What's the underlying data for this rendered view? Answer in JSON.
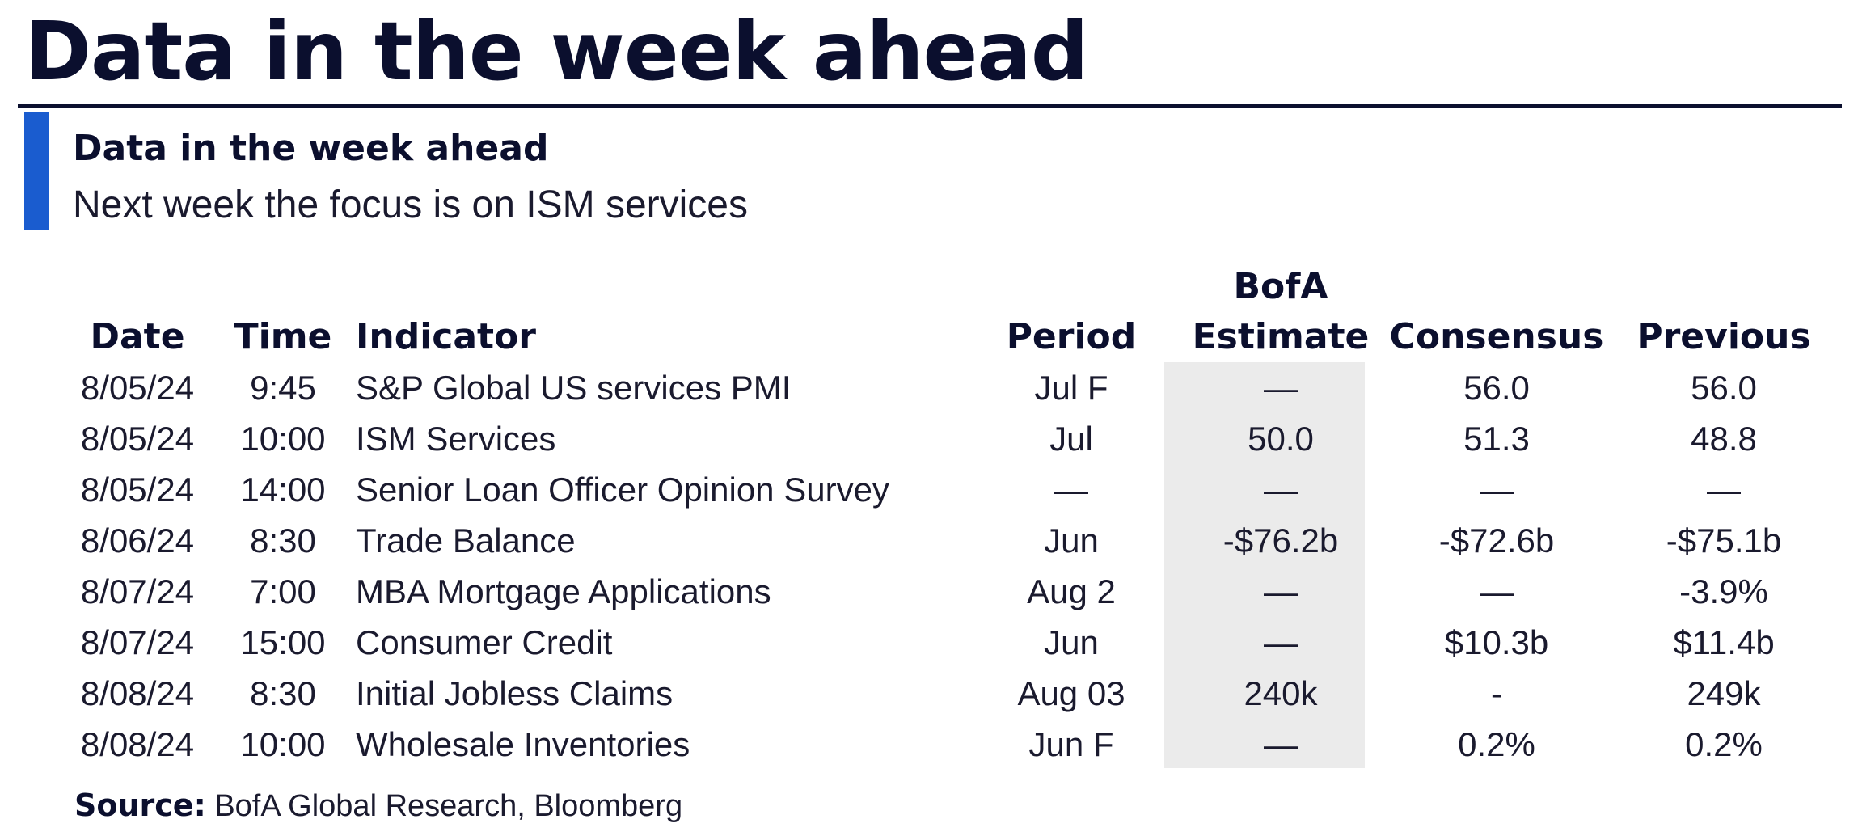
{
  "page": {
    "title": "Data in the week ahead"
  },
  "exhibit": {
    "title": "Data in the week ahead",
    "subtitle": "Next week the focus is on ISM services"
  },
  "colors": {
    "title_text": "#0b0f2e",
    "accent_bar": "#1a5ccf",
    "estimate_column_shade": "#ebebeb"
  },
  "table": {
    "headers": {
      "date": "Date",
      "time": "Time",
      "indicator": "Indicator",
      "period": "Period",
      "estimate_line1": "BofA",
      "estimate_line2": "Estimate",
      "consensus": "Consensus",
      "previous": "Previous"
    },
    "rows": [
      {
        "date": "8/05/24",
        "time": "9:45",
        "indicator": "S&P Global US services PMI",
        "period": "Jul F",
        "estimate": "—",
        "consensus": "56.0",
        "previous": "56.0"
      },
      {
        "date": "8/05/24",
        "time": "10:00",
        "indicator": "ISM Services",
        "period": "Jul",
        "estimate": "50.0",
        "consensus": "51.3",
        "previous": "48.8"
      },
      {
        "date": "8/05/24",
        "time": "14:00",
        "indicator": "Senior Loan Officer Opinion Survey",
        "period": "—",
        "estimate": "—",
        "consensus": "—",
        "previous": "—"
      },
      {
        "date": "8/06/24",
        "time": "8:30",
        "indicator": "Trade Balance",
        "period": "Jun",
        "estimate": "-$76.2b",
        "consensus": "-$72.6b",
        "previous": "-$75.1b"
      },
      {
        "date": "8/07/24",
        "time": "7:00",
        "indicator": "MBA Mortgage Applications",
        "period": "Aug 2",
        "estimate": "—",
        "consensus": "—",
        "previous": "-3.9%"
      },
      {
        "date": "8/07/24",
        "time": "15:00",
        "indicator": "Consumer Credit",
        "period": "Jun",
        "estimate": "—",
        "consensus": "$10.3b",
        "previous": "$11.4b"
      },
      {
        "date": "8/08/24",
        "time": "8:30",
        "indicator": "Initial Jobless Claims",
        "period": "Aug 03",
        "estimate": "240k",
        "consensus": "-",
        "previous": "249k"
      },
      {
        "date": "8/08/24",
        "time": "10:00",
        "indicator": "Wholesale Inventories",
        "period": "Jun F",
        "estimate": "—",
        "consensus": "0.2%",
        "previous": "0.2%"
      }
    ]
  },
  "source": {
    "label": "Source:",
    "text": " BofA Global Research, Bloomberg"
  }
}
